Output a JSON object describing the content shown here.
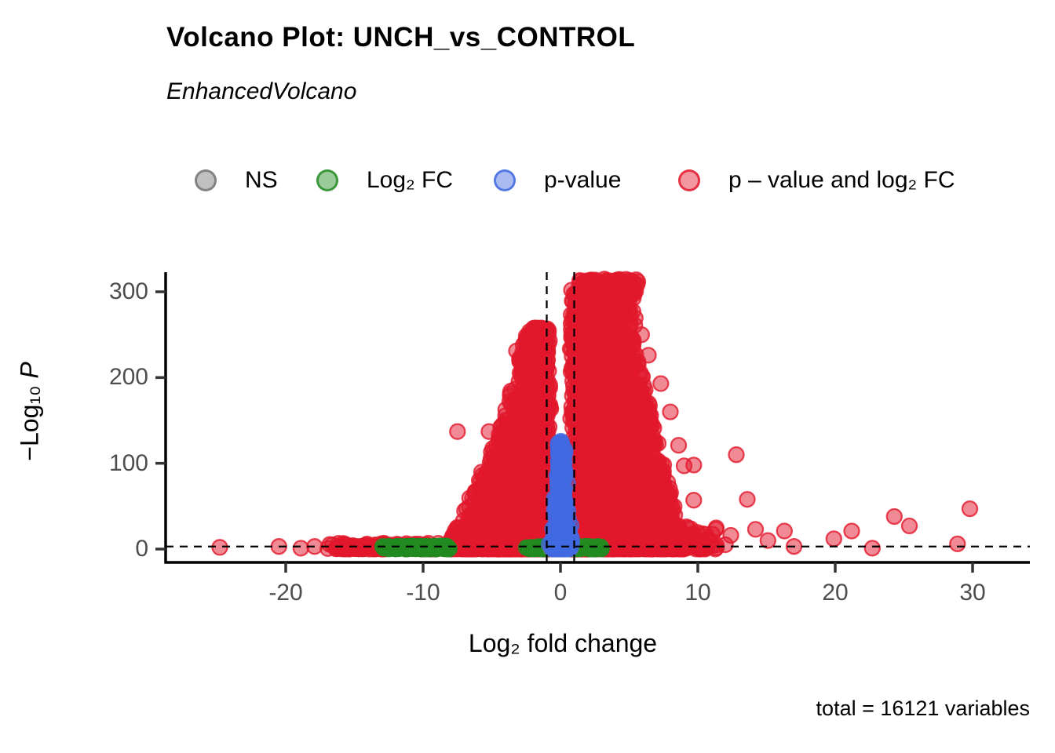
{
  "header": {
    "title": "Volcano Plot: UNCH_vs_CONTROL",
    "subtitle": "EnhancedVolcano"
  },
  "caption": {
    "text": "total = 16121 variables"
  },
  "legend": {
    "items": [
      {
        "key": "ns",
        "label": "NS",
        "color": "#737373"
      },
      {
        "key": "fc",
        "label": "Log₂ FC",
        "color": "#228B22"
      },
      {
        "key": "p",
        "label": "p-value",
        "color": "#4169E1"
      },
      {
        "key": "both",
        "label": "p – value and log₂ FC",
        "color": "#E2182C"
      }
    ]
  },
  "chart_data": {
    "type": "scatter",
    "subtype": "volcano",
    "title": "Volcano Plot: UNCH_vs_CONTROL",
    "total_variables": 16121,
    "x_axis": {
      "label": "Log₂ fold change",
      "ticks": [
        -20,
        -10,
        0,
        10,
        20,
        30
      ],
      "range": [
        -28.7,
        34.2
      ]
    },
    "y_axis": {
      "label_prefix": "−Log₁₀ ",
      "label_italic": "P",
      "ticks": [
        0,
        100,
        200,
        300
      ],
      "range": [
        -15,
        323
      ]
    },
    "thresholds": {
      "vlines_x": [
        -1,
        1
      ],
      "hline_y": 3
    },
    "colors": {
      "ns": "#737373",
      "fc": "#228B22",
      "p": "#4169E1",
      "both": "#E2182C"
    },
    "point_style": {
      "radius": 9.5,
      "stroke_width": 2.3,
      "fill_opacity": 0.5,
      "stroke_opacity": 0.8
    },
    "point_clusters": [
      {
        "name": "right-mountain",
        "type": "mountain",
        "class": "both",
        "seed": 11,
        "count": 2400,
        "inner_x": 0.95,
        "inner_jitter": 0.25,
        "ymax": 303,
        "y_exp": 2.1,
        "bias_exp": 1.5,
        "outer_edge": [
          [
            0,
            9.2
          ],
          [
            60,
            8.1
          ],
          [
            120,
            7.2
          ],
          [
            180,
            6.4
          ],
          [
            240,
            5.4
          ],
          [
            303,
            5.5
          ]
        ]
      },
      {
        "name": "right-low-tail",
        "type": "band",
        "class": "both",
        "seed": 12,
        "count": 430,
        "x_range": [
          1.0,
          11.4
        ],
        "x_exp": 2.2,
        "y_range": [
          0,
          26
        ],
        "y_exp": 2.0
      },
      {
        "name": "top-capped-band",
        "type": "band",
        "class": "both",
        "seed": 13,
        "count": 80,
        "x_range": [
          1.35,
          5.65
        ],
        "x_exp": 1.25,
        "y_range": [
          301,
          315
        ],
        "y_exp": 1.0
      },
      {
        "name": "left-mountain",
        "type": "mountain",
        "class": "both",
        "seed": 14,
        "count": 1500,
        "inner_x": -0.95,
        "inner_jitter": 0.25,
        "ymax": 258,
        "y_exp": 2.2,
        "bias_exp": 1.5,
        "outer_edge": [
          [
            0,
            -8.3
          ],
          [
            60,
            -6.6
          ],
          [
            120,
            -4.9
          ],
          [
            180,
            -3.7
          ],
          [
            240,
            -2.7
          ],
          [
            258,
            -2.3
          ]
        ]
      },
      {
        "name": "left-low-tail",
        "type": "band",
        "class": "both",
        "seed": 15,
        "count": 280,
        "x_range": [
          -0.95,
          -17.0
        ],
        "x_exp": 2.1,
        "y_range": [
          0,
          7
        ],
        "y_exp": 1.8
      },
      {
        "name": "far-left-strip",
        "type": "band",
        "class": "both",
        "seed": 16,
        "count": 60,
        "x_range": [
          -12.5,
          -16.5
        ],
        "x_exp": 1.3,
        "y_range": [
          0,
          4
        ],
        "y_exp": 1.2
      },
      {
        "name": "green-left-pill",
        "type": "band",
        "class": "fc",
        "seed": 21,
        "count": 180,
        "x_range": [
          -8.1,
          -13.0
        ],
        "x_exp": 1.15,
        "y_range": [
          0,
          3.6
        ],
        "y_exp": 1.0
      },
      {
        "name": "green-left-flank",
        "type": "band",
        "class": "fc",
        "seed": 22,
        "count": 50,
        "x_range": [
          -1.0,
          -2.5
        ],
        "x_exp": 1.2,
        "y_range": [
          0,
          3.2
        ],
        "y_exp": 1.0
      },
      {
        "name": "green-right-flank",
        "type": "band",
        "class": "fc",
        "seed": 23,
        "count": 60,
        "x_range": [
          1.0,
          3.0
        ],
        "x_exp": 1.4,
        "y_range": [
          0,
          3.2
        ],
        "y_exp": 1.0
      },
      {
        "name": "gray-center-blob",
        "type": "spike",
        "class": "ns",
        "seed": 31,
        "count": 120,
        "center": 0,
        "base_hw": 0.9,
        "top_hw": 0.55,
        "ymax": 4.5,
        "y_exp": 1.0
      },
      {
        "name": "blue-center-spike",
        "type": "spike",
        "class": "p",
        "seed": 41,
        "count": 280,
        "center": 0.05,
        "base_hw": 0.95,
        "top_hw": 0.28,
        "ymax": 126,
        "y_exp": 2.4
      }
    ],
    "outlier_points": {
      "class": "both",
      "points": [
        [
          -24.8,
          2
        ],
        [
          -20.5,
          3
        ],
        [
          -18.9,
          1
        ],
        [
          -17.9,
          3
        ],
        [
          -7.5,
          137
        ],
        [
          -5.2,
          137
        ],
        [
          -3.2,
          231
        ],
        [
          -2.4,
          247
        ],
        [
          5.9,
          250
        ],
        [
          6.4,
          226
        ],
        [
          7.3,
          193
        ],
        [
          8.0,
          160
        ],
        [
          8.6,
          121
        ],
        [
          9.0,
          97
        ],
        [
          9.7,
          98
        ],
        [
          9.7,
          57
        ],
        [
          10.3,
          18
        ],
        [
          10.9,
          9
        ],
        [
          11.3,
          23
        ],
        [
          12.0,
          5
        ],
        [
          12.4,
          16
        ],
        [
          12.8,
          110
        ],
        [
          13.6,
          58
        ],
        [
          14.2,
          23
        ],
        [
          15.1,
          10
        ],
        [
          16.3,
          21
        ],
        [
          17.0,
          3
        ],
        [
          19.9,
          12
        ],
        [
          21.2,
          21
        ],
        [
          22.7,
          1
        ],
        [
          24.3,
          38
        ],
        [
          25.4,
          27
        ],
        [
          28.9,
          6
        ],
        [
          29.8,
          47
        ]
      ]
    }
  }
}
